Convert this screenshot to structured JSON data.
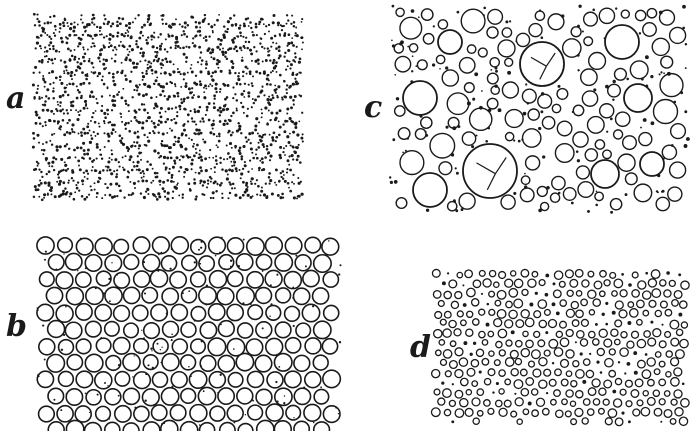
{
  "panels": [
    {
      "id": "a",
      "label": "a",
      "pattern": "dotted-honeycomb",
      "description_visible": false
    },
    {
      "id": "b",
      "label": "b",
      "pattern": "packed-circles"
    },
    {
      "id": "c",
      "label": "c",
      "pattern": "mixed-circles-with-dots"
    },
    {
      "id": "d",
      "label": "d",
      "pattern": "small-rings"
    }
  ],
  "colors": {
    "ink": "#1a1a1a",
    "background": "#ffffff"
  }
}
